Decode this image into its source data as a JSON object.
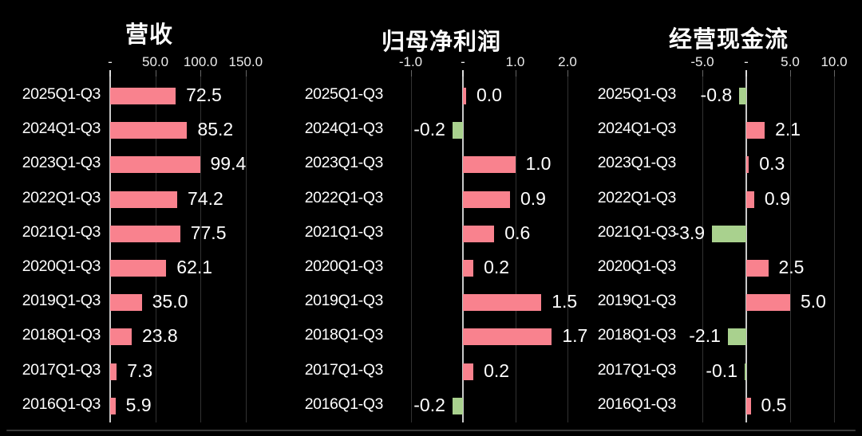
{
  "page": {
    "background": "#000000",
    "bottom_divider_color": "#3a3a3a"
  },
  "colors": {
    "positive_bar": "#f9828e",
    "negative_bar": "#a9d18e",
    "axis_line": "#c9c9c9",
    "gridline": "#323232",
    "tick": "#666666",
    "zero_tick": "#dddddd",
    "text": "#ffffff"
  },
  "chart_data": [
    {
      "type": "bar",
      "orientation": "horizontal",
      "title": "营收",
      "categories": [
        "2025Q1-Q3",
        "2024Q1-Q3",
        "2023Q1-Q3",
        "2022Q1-Q3",
        "2021Q1-Q3",
        "2020Q1-Q3",
        "2019Q1-Q3",
        "2018Q1-Q3",
        "2017Q1-Q3",
        "2016Q1-Q3"
      ],
      "values": [
        72.5,
        85.2,
        99.4,
        74.2,
        77.5,
        62.1,
        35.0,
        23.8,
        7.3,
        5.9
      ],
      "value_labels": [
        "72.5",
        "85.2",
        "99.4",
        "74.2",
        "77.5",
        "62.1",
        "35.0",
        "23.8",
        "7.3",
        "5.9"
      ],
      "axis_ticks": [
        {
          "label": "-",
          "value": 0
        },
        {
          "label": "50.0",
          "value": 50
        },
        {
          "label": "100.0",
          "value": 100
        },
        {
          "label": "150.0",
          "value": 150
        }
      ],
      "xlim": [
        0,
        165
      ],
      "grid": true,
      "legend": null
    },
    {
      "type": "bar",
      "orientation": "horizontal",
      "title": "归母净利润",
      "categories": [
        "2025Q1-Q3",
        "2024Q1-Q3",
        "2023Q1-Q3",
        "2022Q1-Q3",
        "2021Q1-Q3",
        "2020Q1-Q3",
        "2019Q1-Q3",
        "2018Q1-Q3",
        "2017Q1-Q3",
        "2016Q1-Q3"
      ],
      "values": [
        0.0,
        -0.2,
        1.0,
        0.9,
        0.6,
        0.2,
        1.5,
        1.7,
        0.2,
        -0.2
      ],
      "value_labels": [
        "0.0",
        "-0.2",
        "1.0",
        "0.9",
        "0.6",
        "0.2",
        "1.5",
        "1.7",
        "0.2",
        "-0.2"
      ],
      "axis_ticks": [
        {
          "label": "-1.0",
          "value": -1
        },
        {
          "label": "-",
          "value": 0
        },
        {
          "label": "1.0",
          "value": 1
        },
        {
          "label": "2.0",
          "value": 2
        }
      ],
      "xlim": [
        -1.75,
        2.35
      ],
      "grid": true,
      "legend": null
    },
    {
      "type": "bar",
      "orientation": "horizontal",
      "title": "经营现金流",
      "categories": [
        "2025Q1-Q3",
        "2024Q1-Q3",
        "2023Q1-Q3",
        "2022Q1-Q3",
        "2021Q1-Q3",
        "2020Q1-Q3",
        "2019Q1-Q3",
        "2018Q1-Q3",
        "2017Q1-Q3",
        "2016Q1-Q3"
      ],
      "values": [
        -0.8,
        2.1,
        0.3,
        0.9,
        -3.9,
        2.5,
        5.0,
        -2.1,
        -0.1,
        0.5
      ],
      "value_labels": [
        "-0.8",
        "2.1",
        "0.3",
        "0.9",
        "-3.9",
        "2.5",
        "5.0",
        "-2.1",
        "-0.1",
        "0.5"
      ],
      "axis_ticks": [
        {
          "label": "-5.0",
          "value": -5
        },
        {
          "label": "-",
          "value": 0
        },
        {
          "label": "5.0",
          "value": 5
        },
        {
          "label": "10.0",
          "value": 10
        }
      ],
      "xlim": [
        -6,
        10.5
      ],
      "grid": true,
      "legend": null
    }
  ]
}
